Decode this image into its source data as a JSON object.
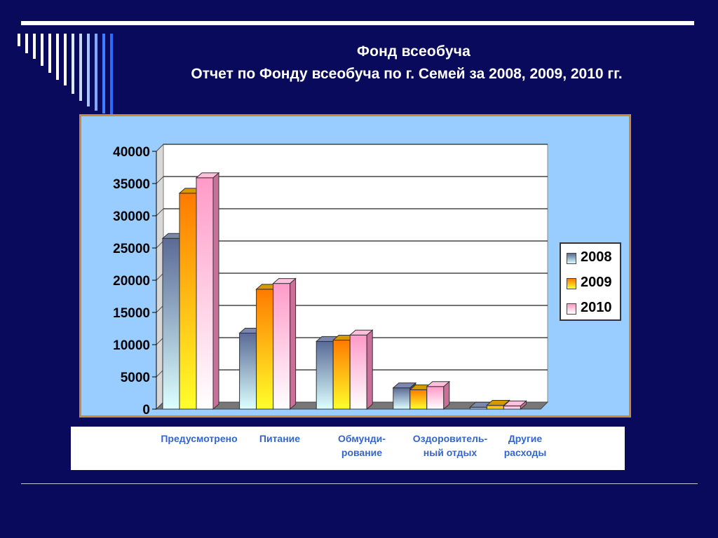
{
  "slide": {
    "title": "Фонд всеобуча",
    "subtitle": "Отчет по Фонду всеобуча по г. Семей за  2008, 2009, 2010 гг."
  },
  "colors": {
    "background": "#0a0a5c",
    "chart_area": "#99ccff",
    "frame": "#cc8833",
    "category_text": "#3366cc",
    "series_2008": "#5a6a96",
    "series_2009": "#ff7a00",
    "series_2010": "#ff9ac8"
  },
  "chart_data": {
    "type": "bar",
    "categories": [
      "Предусмотрено",
      "Питание",
      "Обмунди-\nрование",
      "Оздоровитель-\nный отдых",
      "Другие\nрасходы"
    ],
    "series": [
      {
        "name": "2008",
        "values": [
          26500,
          11800,
          10500,
          3300,
          300
        ]
      },
      {
        "name": "2009",
        "values": [
          33500,
          18600,
          10700,
          3000,
          600
        ]
      },
      {
        "name": "2010",
        "values": [
          35900,
          19500,
          11500,
          3500,
          500
        ]
      }
    ],
    "yticks": [
      "40000",
      "35000",
      "30000",
      "25000",
      "20000",
      "15000",
      "10000",
      "5000",
      "0"
    ],
    "ylim": [
      0,
      40000
    ],
    "grid": true,
    "legend_position": "right"
  }
}
